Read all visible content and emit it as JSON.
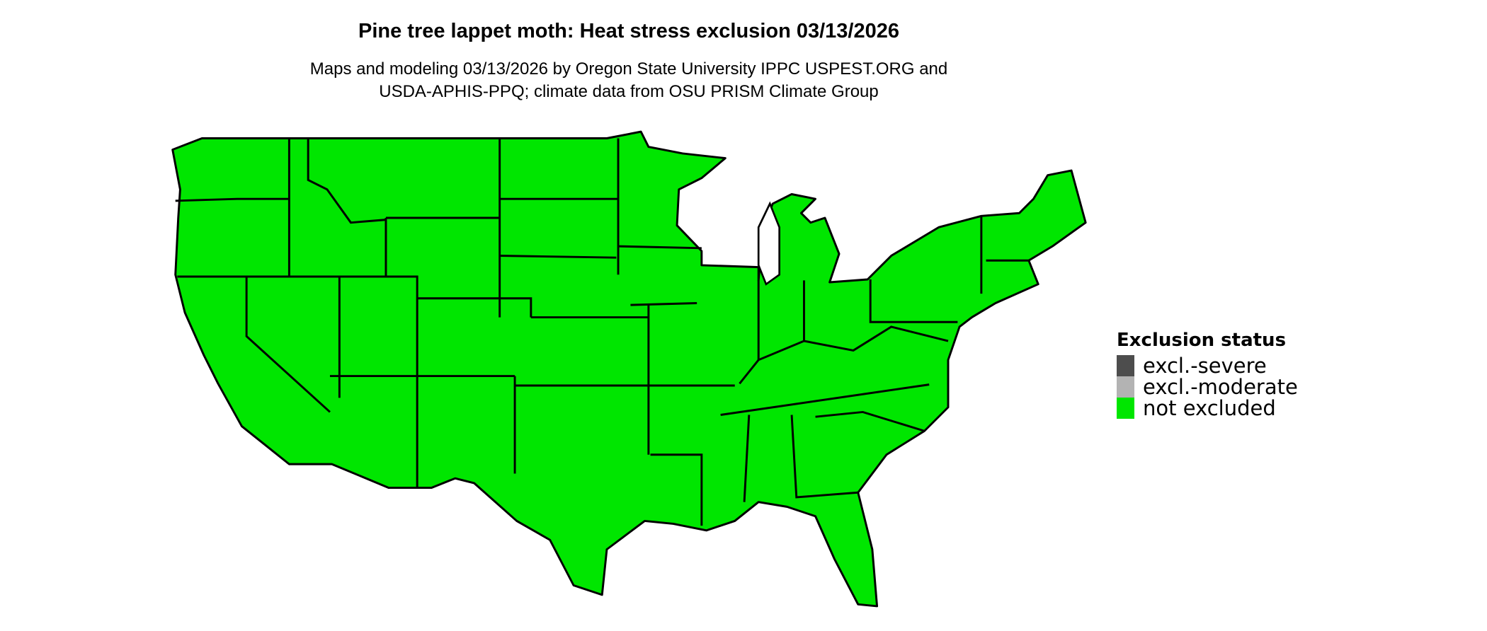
{
  "title": "Pine tree lappet moth: Heat stress exclusion 03/13/2026",
  "subtitle_lines": [
    "Maps and modeling 03/13/2026 by Oregon State University IPPC USPEST.ORG and",
    "USDA-APHIS-PPQ; climate data from OSU PRISM Climate Group"
  ],
  "map": {
    "region": "Contiguous United States",
    "fill_status": "not excluded",
    "fill_color": "#00e600",
    "border_color": "#000000"
  },
  "legend": {
    "title": "Exclusion status",
    "items": [
      {
        "label": "excl.-severe",
        "color": "#4d4d4d"
      },
      {
        "label": "excl.-moderate",
        "color": "#b3b3b3"
      },
      {
        "label": "not excluded",
        "color": "#00e600"
      }
    ]
  }
}
